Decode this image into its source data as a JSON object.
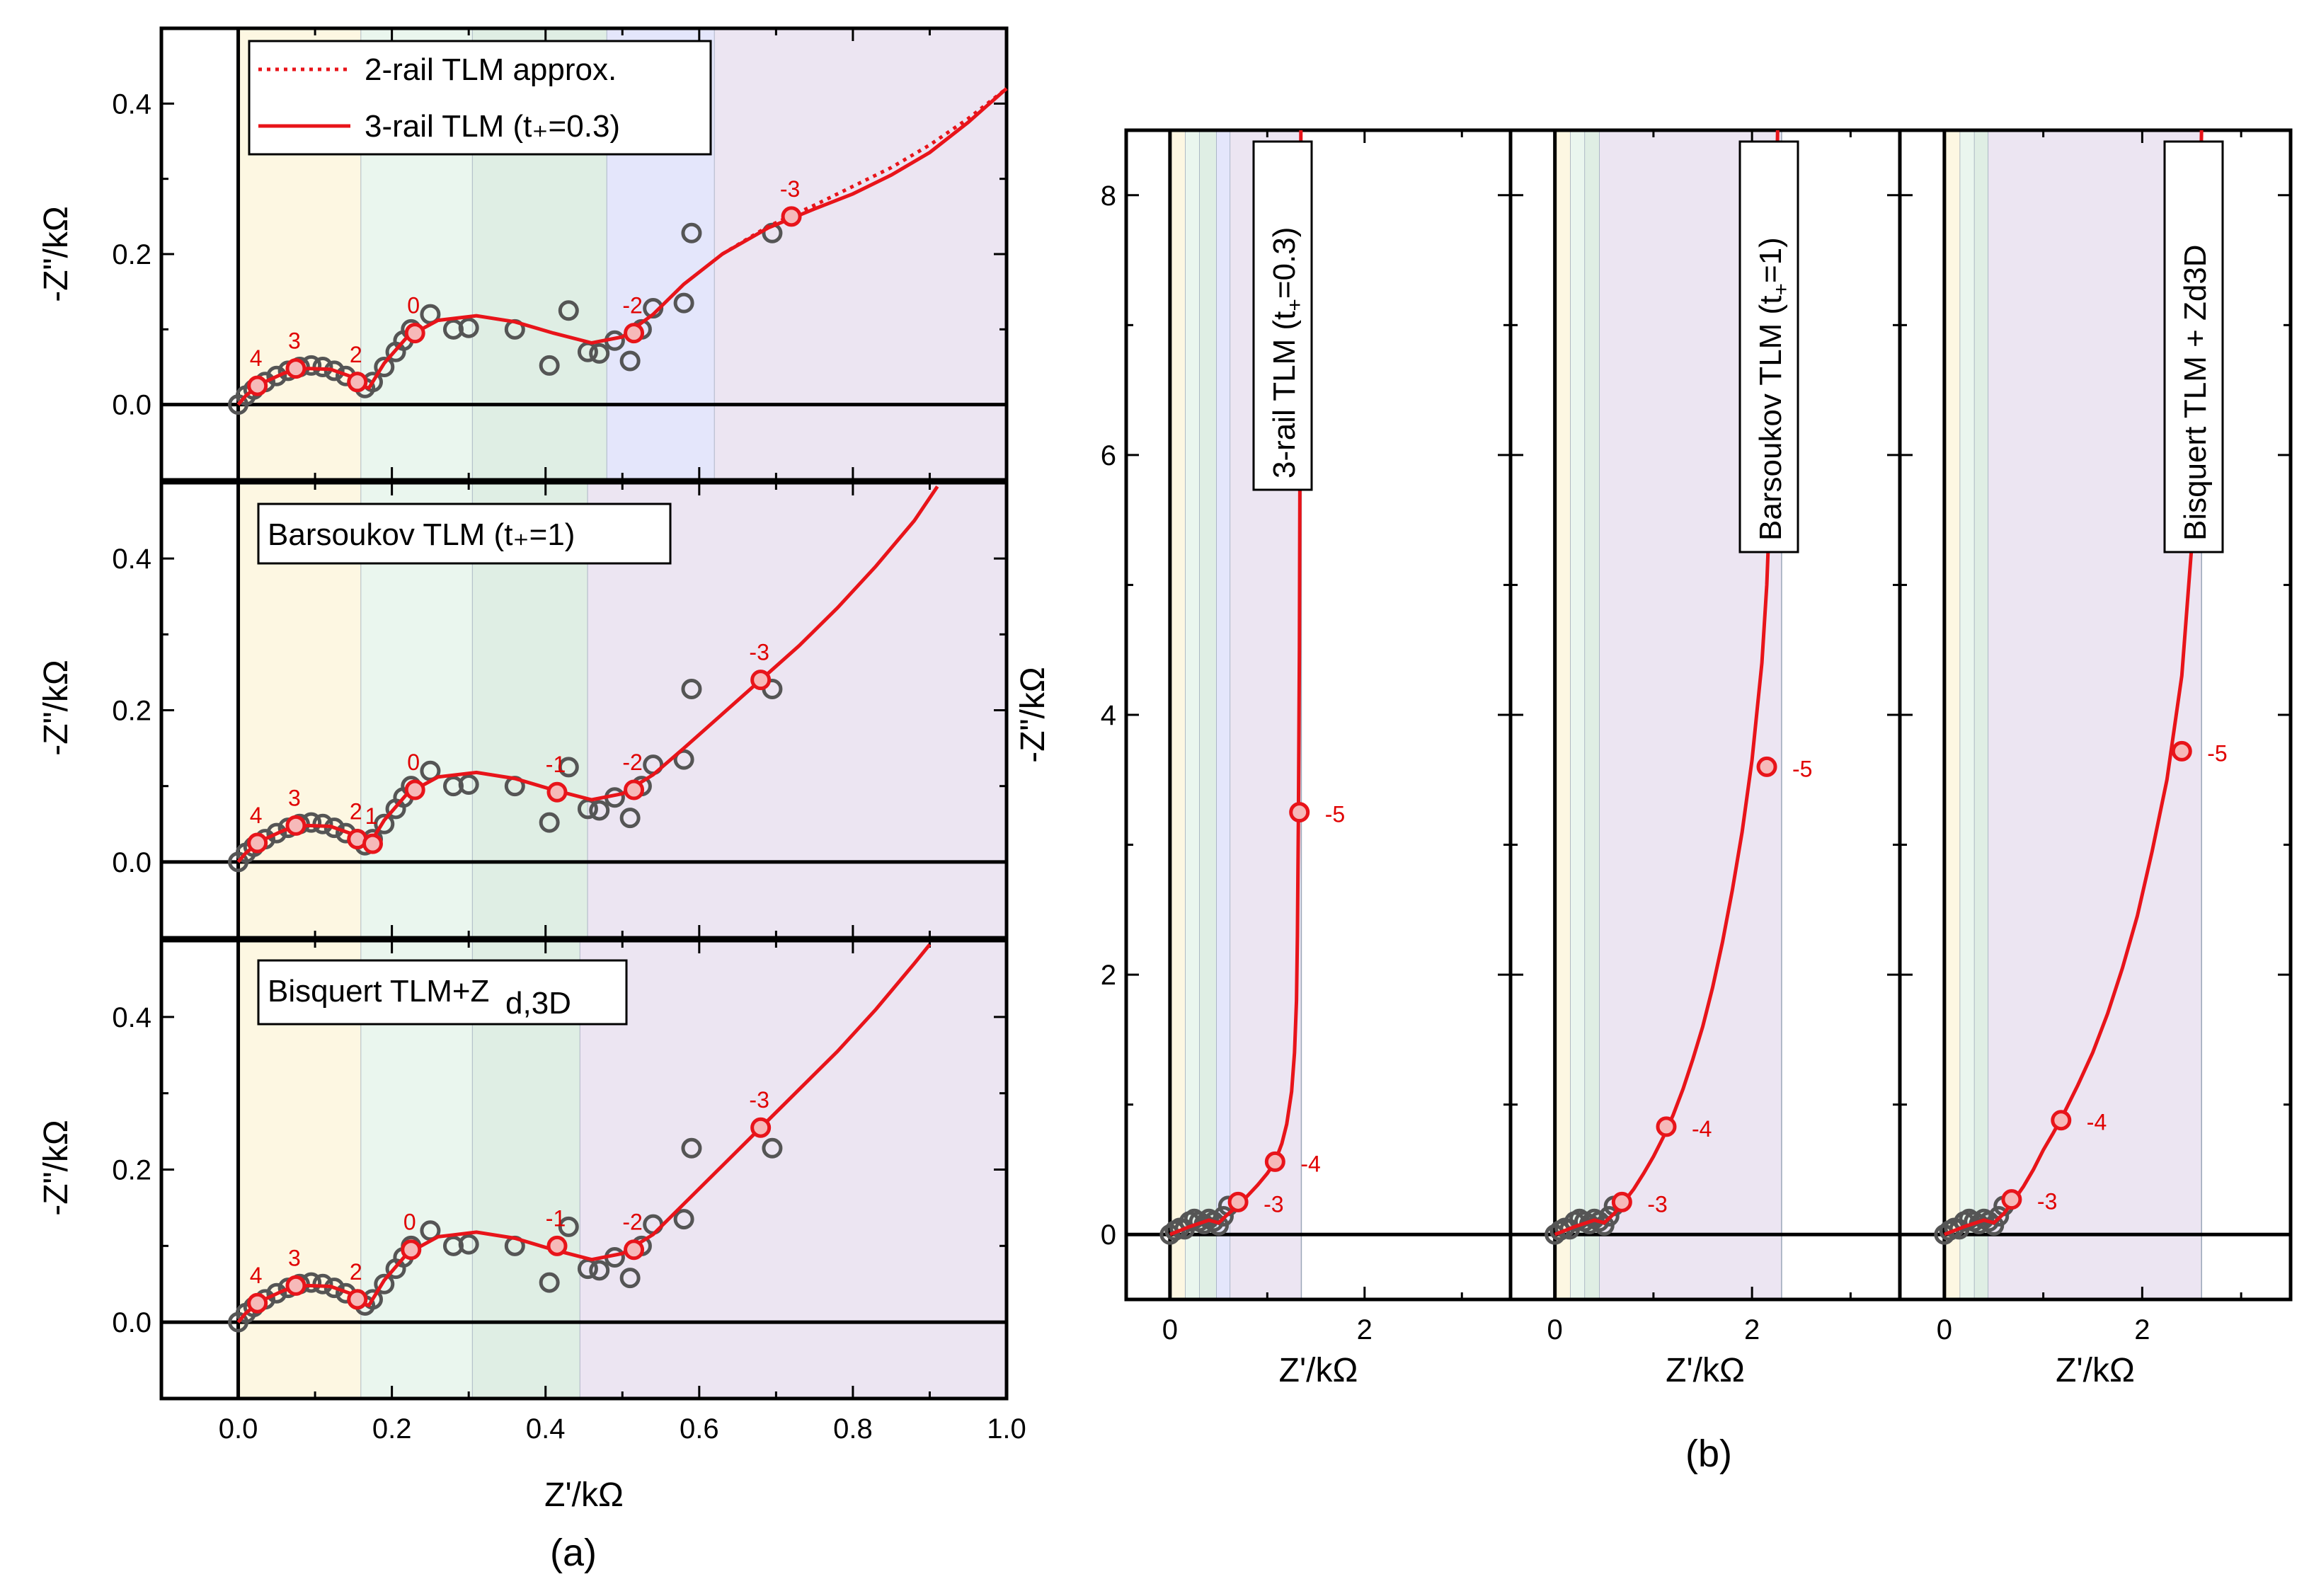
{
  "figure": {
    "caption_a": "(a)",
    "caption_b": "(b)"
  },
  "colors": {
    "fit": "#e8141a",
    "marker_gray": "#555555",
    "band_yellow": "#fdf7e2",
    "band_green": "#eaf6ee",
    "band_green_dark": "#dfeee4",
    "band_blue": "#e4e6fb",
    "band_purple": "#ece5f2"
  },
  "chart_data": [
    {
      "id": "a1",
      "type": "scatter",
      "xlabel": "",
      "ylabel": "-Z\"/kΩ",
      "xlim": [
        -0.1,
        1.0
      ],
      "ylim": [
        -0.1,
        0.5
      ],
      "yticks": [
        "0.0",
        "0.2",
        "0.4"
      ],
      "bands": [
        {
          "from": 0.0,
          "to": 0.16,
          "color": "band_yellow"
        },
        {
          "from": 0.16,
          "to": 0.305,
          "color": "band_green"
        },
        {
          "from": 0.305,
          "to": 0.48,
          "color": "band_green_dark"
        },
        {
          "from": 0.48,
          "to": 0.62,
          "color": "band_blue"
        },
        {
          "from": 0.62,
          "to": 1.0,
          "color": "band_purple"
        }
      ],
      "legend": [
        "2-rail TLM approx.",
        "3-rail TLM (t₊=0.3)"
      ],
      "series": [
        {
          "name": "3-rail TLM (t₊=0.3)",
          "style": "solid",
          "x": [
            0,
            0.01,
            0.03,
            0.06,
            0.09,
            0.12,
            0.145,
            0.16,
            0.17,
            0.19,
            0.22,
            0.26,
            0.31,
            0.36,
            0.41,
            0.46,
            0.5,
            0.54,
            0.58,
            0.63,
            0.69,
            0.75,
            0.8,
            0.85,
            0.9,
            0.95,
            1.0
          ],
          "y": [
            0,
            0.012,
            0.028,
            0.042,
            0.048,
            0.047,
            0.038,
            0.025,
            0.022,
            0.055,
            0.09,
            0.112,
            0.118,
            0.11,
            0.095,
            0.082,
            0.09,
            0.12,
            0.16,
            0.2,
            0.235,
            0.26,
            0.28,
            0.305,
            0.335,
            0.375,
            0.42
          ]
        },
        {
          "name": "2-rail TLM approx.",
          "style": "dotted",
          "x": [
            0.63,
            0.69,
            0.75,
            0.8,
            0.85,
            0.9,
            0.95,
            1.0
          ],
          "y": [
            0.2,
            0.237,
            0.265,
            0.29,
            0.315,
            0.345,
            0.38,
            0.42
          ]
        }
      ],
      "decade_points": [
        {
          "x": 0.025,
          "y": 0.025,
          "label": "4"
        },
        {
          "x": 0.075,
          "y": 0.048,
          "label": "3"
        },
        {
          "x": 0.155,
          "y": 0.03,
          "label": "2"
        },
        {
          "x": 0.23,
          "y": 0.095,
          "label": "0"
        },
        {
          "x": 0.515,
          "y": 0.095,
          "label": "-2"
        },
        {
          "x": 0.72,
          "y": 0.25,
          "label": "-3"
        }
      ],
      "data_points": {
        "x": [
          0.0,
          0.01,
          0.02,
          0.035,
          0.05,
          0.065,
          0.08,
          0.095,
          0.11,
          0.125,
          0.14,
          0.155,
          0.165,
          0.175,
          0.19,
          0.205,
          0.215,
          0.225,
          0.25,
          0.28,
          0.3,
          0.36,
          0.405,
          0.43,
          0.455,
          0.47,
          0.49,
          0.51,
          0.525,
          0.54,
          0.58,
          0.59,
          0.695
        ],
        "y": [
          0.0,
          0.012,
          0.02,
          0.03,
          0.038,
          0.045,
          0.05,
          0.052,
          0.05,
          0.045,
          0.038,
          0.03,
          0.022,
          0.03,
          0.05,
          0.07,
          0.085,
          0.1,
          0.12,
          0.1,
          0.102,
          0.1,
          0.052,
          0.125,
          0.07,
          0.068,
          0.085,
          0.058,
          0.1,
          0.128,
          0.135,
          0.228,
          0.228
        ]
      }
    },
    {
      "id": "a2",
      "type": "scatter",
      "xlabel": "",
      "ylabel": "-Z\"/kΩ",
      "xlim": [
        -0.1,
        1.0
      ],
      "ylim": [
        -0.1,
        0.5
      ],
      "yticks": [
        "0.0",
        "0.2",
        "0.4"
      ],
      "bands": [
        {
          "from": 0.0,
          "to": 0.16,
          "color": "band_yellow"
        },
        {
          "from": 0.16,
          "to": 0.305,
          "color": "band_green"
        },
        {
          "from": 0.305,
          "to": 0.455,
          "color": "band_green_dark"
        },
        {
          "from": 0.455,
          "to": 1.0,
          "color": "band_purple"
        }
      ],
      "legend": [
        "Barsoukov TLM (t₊=1)"
      ],
      "series": [
        {
          "name": "Barsoukov TLM (t₊=1)",
          "style": "solid",
          "x": [
            0,
            0.01,
            0.03,
            0.06,
            0.09,
            0.12,
            0.145,
            0.16,
            0.17,
            0.19,
            0.22,
            0.26,
            0.31,
            0.36,
            0.41,
            0.46,
            0.5,
            0.54,
            0.58,
            0.63,
            0.68,
            0.73,
            0.78,
            0.83,
            0.88,
            0.91
          ],
          "y": [
            0,
            0.012,
            0.028,
            0.042,
            0.048,
            0.047,
            0.038,
            0.025,
            0.022,
            0.055,
            0.09,
            0.112,
            0.118,
            0.11,
            0.095,
            0.082,
            0.09,
            0.115,
            0.15,
            0.195,
            0.24,
            0.285,
            0.335,
            0.39,
            0.45,
            0.495
          ]
        }
      ],
      "decade_points": [
        {
          "x": 0.025,
          "y": 0.025,
          "label": "4"
        },
        {
          "x": 0.075,
          "y": 0.048,
          "label": "3"
        },
        {
          "x": 0.155,
          "y": 0.03,
          "label": "2"
        },
        {
          "x": 0.175,
          "y": 0.024,
          "label": "1"
        },
        {
          "x": 0.23,
          "y": 0.095,
          "label": "0"
        },
        {
          "x": 0.415,
          "y": 0.092,
          "label": "-1"
        },
        {
          "x": 0.515,
          "y": 0.095,
          "label": "-2"
        },
        {
          "x": 0.68,
          "y": 0.24,
          "label": "-3"
        }
      ],
      "data_points": {
        "x": [
          0.0,
          0.01,
          0.02,
          0.035,
          0.05,
          0.065,
          0.08,
          0.095,
          0.11,
          0.125,
          0.14,
          0.155,
          0.165,
          0.175,
          0.19,
          0.205,
          0.215,
          0.225,
          0.25,
          0.28,
          0.3,
          0.36,
          0.405,
          0.43,
          0.455,
          0.47,
          0.49,
          0.51,
          0.525,
          0.54,
          0.58,
          0.59,
          0.695
        ],
        "y": [
          0.0,
          0.012,
          0.02,
          0.03,
          0.038,
          0.045,
          0.05,
          0.052,
          0.05,
          0.045,
          0.038,
          0.03,
          0.022,
          0.03,
          0.05,
          0.07,
          0.085,
          0.1,
          0.12,
          0.1,
          0.102,
          0.1,
          0.052,
          0.125,
          0.07,
          0.068,
          0.085,
          0.058,
          0.1,
          0.128,
          0.135,
          0.228,
          0.228
        ]
      }
    },
    {
      "id": "a3",
      "type": "scatter",
      "xlabel": "Z'/kΩ",
      "ylabel": "-Z\"/kΩ",
      "xlim": [
        -0.1,
        1.0
      ],
      "ylim": [
        -0.1,
        0.5
      ],
      "yticks": [
        "0.0",
        "0.2",
        "0.4"
      ],
      "xticks": [
        "0.0",
        "0.2",
        "0.4",
        "0.6",
        "0.8",
        "1.0"
      ],
      "bands": [
        {
          "from": 0.0,
          "to": 0.16,
          "color": "band_yellow"
        },
        {
          "from": 0.16,
          "to": 0.305,
          "color": "band_green"
        },
        {
          "from": 0.305,
          "to": 0.445,
          "color": "band_green_dark"
        },
        {
          "from": 0.445,
          "to": 1.0,
          "color": "band_purple"
        }
      ],
      "legend": [
        "Bisquert TLM+Z",
        "d,3D"
      ],
      "series": [
        {
          "name": "Bisquert TLM+Zd,3D",
          "style": "solid",
          "x": [
            0,
            0.01,
            0.03,
            0.06,
            0.09,
            0.12,
            0.145,
            0.16,
            0.17,
            0.19,
            0.22,
            0.26,
            0.31,
            0.36,
            0.41,
            0.46,
            0.5,
            0.54,
            0.58,
            0.63,
            0.68,
            0.73,
            0.78,
            0.83,
            0.88,
            0.9
          ],
          "y": [
            0,
            0.012,
            0.028,
            0.042,
            0.048,
            0.047,
            0.038,
            0.025,
            0.022,
            0.055,
            0.09,
            0.112,
            0.118,
            0.11,
            0.095,
            0.082,
            0.09,
            0.115,
            0.155,
            0.205,
            0.255,
            0.305,
            0.355,
            0.41,
            0.47,
            0.495
          ]
        }
      ],
      "decade_points": [
        {
          "x": 0.025,
          "y": 0.025,
          "label": "4"
        },
        {
          "x": 0.075,
          "y": 0.048,
          "label": "3"
        },
        {
          "x": 0.155,
          "y": 0.03,
          "label": "2"
        },
        {
          "x": 0.225,
          "y": 0.095,
          "label": "0"
        },
        {
          "x": 0.415,
          "y": 0.1,
          "label": "-1"
        },
        {
          "x": 0.515,
          "y": 0.095,
          "label": "-2"
        },
        {
          "x": 0.68,
          "y": 0.255,
          "label": "-3"
        }
      ],
      "data_points": {
        "x": [
          0.0,
          0.01,
          0.02,
          0.035,
          0.05,
          0.065,
          0.08,
          0.095,
          0.11,
          0.125,
          0.14,
          0.155,
          0.165,
          0.175,
          0.19,
          0.205,
          0.215,
          0.225,
          0.25,
          0.28,
          0.3,
          0.36,
          0.405,
          0.43,
          0.455,
          0.47,
          0.49,
          0.51,
          0.525,
          0.54,
          0.58,
          0.59,
          0.695
        ],
        "y": [
          0.0,
          0.012,
          0.02,
          0.03,
          0.038,
          0.045,
          0.05,
          0.052,
          0.05,
          0.045,
          0.038,
          0.03,
          0.022,
          0.03,
          0.05,
          0.07,
          0.085,
          0.1,
          0.12,
          0.1,
          0.102,
          0.1,
          0.052,
          0.125,
          0.07,
          0.068,
          0.085,
          0.058,
          0.1,
          0.128,
          0.135,
          0.228,
          0.228
        ]
      }
    },
    {
      "id": "b1",
      "type": "scatter",
      "xlabel": "Z'/kΩ",
      "ylabel": "-Z\"/kΩ",
      "xlim": [
        -0.45,
        3.5
      ],
      "ylim": [
        -0.5,
        8.5
      ],
      "xticks": [
        "0",
        "2"
      ],
      "yticks": [
        "0",
        "2",
        "4",
        "6",
        "8"
      ],
      "bands": [
        {
          "from": 0.0,
          "to": 0.16,
          "color": "band_yellow"
        },
        {
          "from": 0.16,
          "to": 0.305,
          "color": "band_green"
        },
        {
          "from": 0.305,
          "to": 0.48,
          "color": "band_green_dark"
        },
        {
          "from": 0.48,
          "to": 0.62,
          "color": "band_blue"
        },
        {
          "from": 0.62,
          "to": 1.35,
          "color": "band_purple"
        }
      ],
      "legend": [
        "3-rail TLM (t",
        "+",
        "=0.3)"
      ],
      "series": [
        {
          "name": "3-rail TLM (t₊=0.3)",
          "style": "solid",
          "x": [
            0,
            0.2,
            0.4,
            0.5,
            0.6,
            0.7,
            0.8,
            0.9,
            1.0,
            1.08,
            1.15,
            1.2,
            1.25,
            1.28,
            1.3,
            1.31,
            1.32,
            1.33,
            1.335,
            1.34,
            1.345
          ],
          "y": [
            0,
            0.06,
            0.11,
            0.09,
            0.16,
            0.22,
            0.3,
            0.38,
            0.47,
            0.56,
            0.7,
            0.85,
            1.1,
            1.4,
            1.8,
            2.3,
            3.2,
            4.5,
            5.8,
            7.2,
            8.5
          ]
        }
      ],
      "decade_points": [
        {
          "x": 0.7,
          "y": 0.25,
          "label": "-3"
        },
        {
          "x": 1.08,
          "y": 0.56,
          "label": "-4"
        },
        {
          "x": 1.33,
          "y": 3.25,
          "label": "-5"
        }
      ],
      "data_points": {
        "x": [
          0.0,
          0.05,
          0.1,
          0.15,
          0.2,
          0.25,
          0.3,
          0.35,
          0.4,
          0.45,
          0.5,
          0.55,
          0.6
        ],
        "y": [
          0.0,
          0.03,
          0.05,
          0.04,
          0.1,
          0.12,
          0.1,
          0.08,
          0.12,
          0.1,
          0.07,
          0.14,
          0.22
        ]
      }
    },
    {
      "id": "b2",
      "type": "scatter",
      "xlabel": "Z'/kΩ",
      "ylabel": "",
      "xlim": [
        -0.45,
        3.5
      ],
      "ylim": [
        -0.5,
        8.5
      ],
      "xticks": [
        "0",
        "2"
      ],
      "yticks": [],
      "bands": [
        {
          "from": 0.0,
          "to": 0.16,
          "color": "band_yellow"
        },
        {
          "from": 0.16,
          "to": 0.305,
          "color": "band_green"
        },
        {
          "from": 0.305,
          "to": 0.455,
          "color": "band_green_dark"
        },
        {
          "from": 0.455,
          "to": 2.3,
          "color": "band_purple"
        }
      ],
      "legend": [
        "Barsoukov TLM (t",
        "+",
        "=1)"
      ],
      "series": [
        {
          "name": "Barsoukov TLM (t₊=1)",
          "style": "solid",
          "x": [
            0,
            0.2,
            0.4,
            0.5,
            0.6,
            0.7,
            0.8,
            0.9,
            1.0,
            1.1,
            1.2,
            1.3,
            1.4,
            1.5,
            1.6,
            1.7,
            1.8,
            1.9,
            2.0,
            2.1,
            2.15,
            2.2,
            2.23,
            2.26
          ],
          "y": [
            0,
            0.06,
            0.11,
            0.09,
            0.16,
            0.25,
            0.35,
            0.47,
            0.6,
            0.75,
            0.92,
            1.12,
            1.35,
            1.6,
            1.9,
            2.25,
            2.65,
            3.1,
            3.65,
            4.4,
            5.0,
            6.0,
            7.2,
            8.5
          ]
        }
      ],
      "decade_points": [
        {
          "x": 0.68,
          "y": 0.25,
          "label": "-3"
        },
        {
          "x": 1.13,
          "y": 0.83,
          "label": "-4"
        },
        {
          "x": 2.15,
          "y": 3.6,
          "label": "-5"
        }
      ],
      "data_points": {
        "x": [
          0.0,
          0.05,
          0.1,
          0.15,
          0.2,
          0.25,
          0.3,
          0.35,
          0.4,
          0.45,
          0.5,
          0.55,
          0.6
        ],
        "y": [
          0.0,
          0.03,
          0.05,
          0.04,
          0.1,
          0.12,
          0.1,
          0.08,
          0.12,
          0.1,
          0.07,
          0.14,
          0.22
        ]
      }
    },
    {
      "id": "b3",
      "type": "scatter",
      "xlabel": "Z'/kΩ",
      "ylabel": "",
      "xlim": [
        -0.45,
        3.5
      ],
      "ylim": [
        -0.5,
        8.5
      ],
      "xticks": [
        "0",
        "2"
      ],
      "yticks": [],
      "bands": [
        {
          "from": 0.0,
          "to": 0.16,
          "color": "band_yellow"
        },
        {
          "from": 0.16,
          "to": 0.305,
          "color": "band_green"
        },
        {
          "from": 0.305,
          "to": 0.445,
          "color": "band_green_dark"
        },
        {
          "from": 0.445,
          "to": 2.6,
          "color": "band_purple"
        }
      ],
      "legend": [
        "Bisquert TLM + Zd3D"
      ],
      "series": [
        {
          "name": "Bisquert TLM + Zd3D",
          "style": "solid",
          "x": [
            0,
            0.2,
            0.4,
            0.5,
            0.6,
            0.7,
            0.8,
            0.9,
            1.0,
            1.1,
            1.2,
            1.35,
            1.5,
            1.65,
            1.8,
            1.95,
            2.1,
            2.25,
            2.4,
            2.5,
            2.55,
            2.6
          ],
          "y": [
            0,
            0.06,
            0.11,
            0.09,
            0.16,
            0.26,
            0.37,
            0.5,
            0.65,
            0.78,
            0.92,
            1.15,
            1.4,
            1.7,
            2.05,
            2.45,
            2.95,
            3.5,
            4.3,
            5.3,
            6.5,
            8.5
          ]
        }
      ],
      "decade_points": [
        {
          "x": 0.68,
          "y": 0.27,
          "label": "-3"
        },
        {
          "x": 1.18,
          "y": 0.88,
          "label": "-4"
        },
        {
          "x": 2.4,
          "y": 3.72,
          "label": "-5"
        }
      ],
      "data_points": {
        "x": [
          0.0,
          0.05,
          0.1,
          0.15,
          0.2,
          0.25,
          0.3,
          0.35,
          0.4,
          0.45,
          0.5,
          0.55,
          0.6
        ],
        "y": [
          0.0,
          0.03,
          0.05,
          0.04,
          0.1,
          0.12,
          0.1,
          0.08,
          0.12,
          0.1,
          0.07,
          0.14,
          0.22
        ]
      }
    }
  ]
}
